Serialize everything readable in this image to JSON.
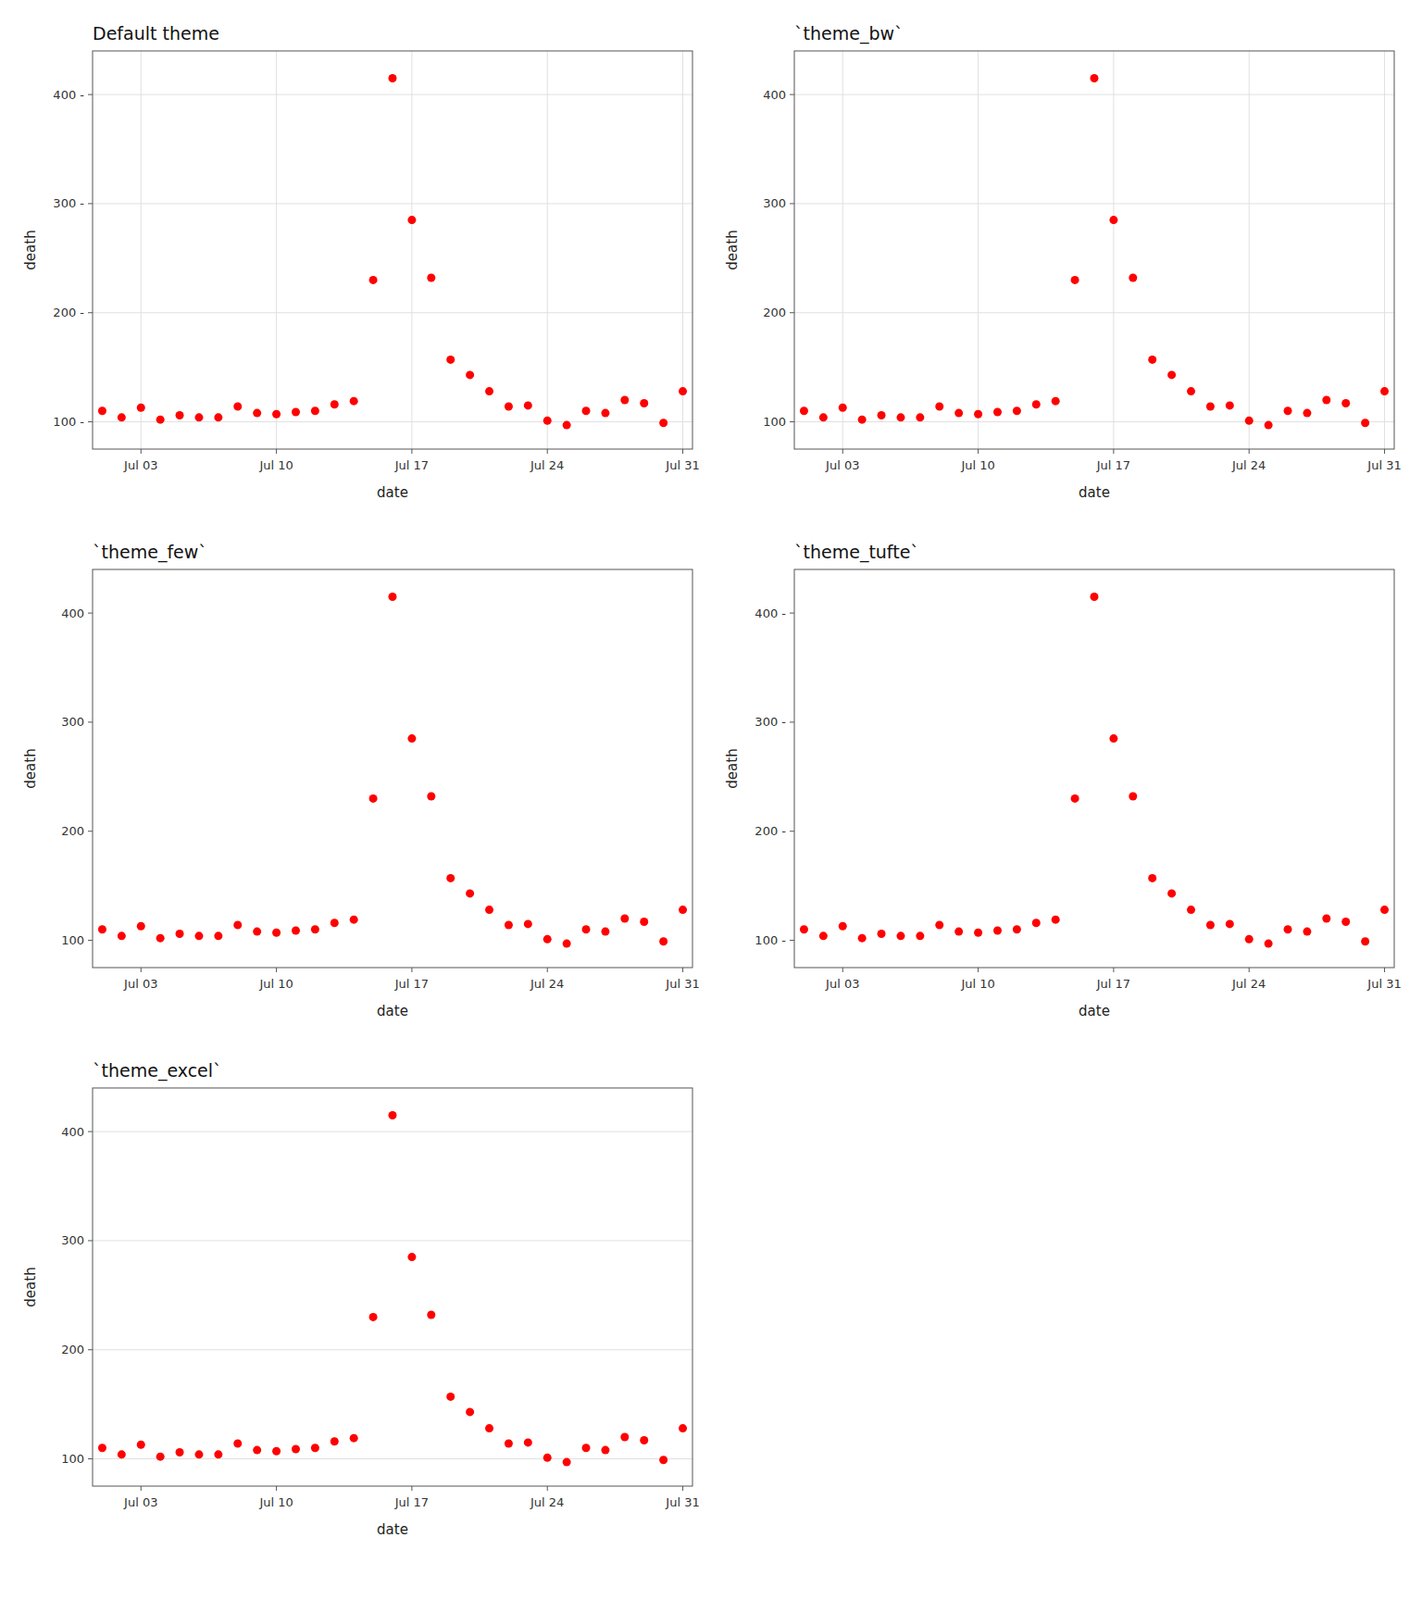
{
  "chart_data": [
    {
      "type": "scatter",
      "title": "Default theme",
      "x_label": "date",
      "y_label": "death",
      "x": [
        1,
        2,
        3,
        4,
        5,
        6,
        7,
        8,
        9,
        10,
        11,
        12,
        13,
        14,
        15,
        16,
        17,
        18,
        19,
        20,
        21,
        22,
        23,
        24,
        25,
        26,
        27,
        28,
        29,
        30,
        31
      ],
      "values": [
        110,
        104,
        113,
        102,
        106,
        104,
        104,
        114,
        108,
        107,
        109,
        110,
        116,
        119,
        230,
        415,
        285,
        232,
        157,
        143,
        128,
        114,
        115,
        101,
        97,
        110,
        108,
        120,
        117,
        99,
        128
      ],
      "color": "#FF0000",
      "xlim": [
        0.5,
        31.5
      ],
      "xticks": [
        {
          "value": 3,
          "label": "Jul 03"
        },
        {
          "value": 10,
          "label": "Jul 10"
        },
        {
          "value": 17,
          "label": "Jul 17"
        },
        {
          "value": 24,
          "label": "Jul 24"
        },
        {
          "value": 31,
          "label": "Jul 31"
        }
      ],
      "ylim": [
        75,
        440
      ],
      "yticks": [
        {
          "value": 100,
          "label": "100 -"
        },
        {
          "value": 200,
          "label": "200 -"
        },
        {
          "value": 300,
          "label": "300 -"
        },
        {
          "value": 400,
          "label": "400 -"
        }
      ],
      "grid": true
    },
    {
      "type": "scatter",
      "title": "`theme_bw`",
      "x_label": "date",
      "y_label": "death",
      "x": [
        1,
        2,
        3,
        4,
        5,
        6,
        7,
        8,
        9,
        10,
        11,
        12,
        13,
        14,
        15,
        16,
        17,
        18,
        19,
        20,
        21,
        22,
        23,
        24,
        25,
        26,
        27,
        28,
        29,
        30,
        31
      ],
      "values": [
        110,
        104,
        113,
        102,
        106,
        104,
        104,
        114,
        108,
        107,
        109,
        110,
        116,
        119,
        230,
        415,
        285,
        232,
        157,
        143,
        128,
        114,
        115,
        101,
        97,
        110,
        108,
        120,
        117,
        99,
        128
      ],
      "color": "#FF0000",
      "xlim": [
        0.5,
        31.5
      ],
      "xticks": [
        {
          "value": 3,
          "label": "Jul 03"
        },
        {
          "value": 10,
          "label": "Jul 10"
        },
        {
          "value": 17,
          "label": "Jul 17"
        },
        {
          "value": 24,
          "label": "Jul 24"
        },
        {
          "value": 31,
          "label": "Jul 31"
        }
      ],
      "ylim": [
        75,
        440
      ],
      "yticks": [
        100,
        200,
        300,
        400
      ],
      "grid": true
    },
    {
      "type": "scatter",
      "title": "`theme_few`",
      "x_label": "date",
      "y_label": "death",
      "x": [
        1,
        2,
        3,
        4,
        5,
        6,
        7,
        8,
        9,
        10,
        11,
        12,
        13,
        14,
        15,
        16,
        17,
        18,
        19,
        20,
        21,
        22,
        23,
        24,
        25,
        26,
        27,
        28,
        29,
        30,
        31
      ],
      "values": [
        110,
        104,
        113,
        102,
        106,
        104,
        104,
        114,
        108,
        107,
        109,
        110,
        116,
        119,
        230,
        415,
        285,
        232,
        157,
        143,
        128,
        114,
        115,
        101,
        97,
        110,
        108,
        120,
        117,
        99,
        128
      ],
      "color": "#FF0000",
      "xlim": [
        0.5,
        31.5
      ],
      "xticks": [
        {
          "value": 3,
          "label": "Jul 03"
        },
        {
          "value": 10,
          "label": "Jul 10"
        },
        {
          "value": 17,
          "label": "Jul 17"
        },
        {
          "value": 24,
          "label": "Jul 24"
        },
        {
          "value": 31,
          "label": "Jul 31"
        }
      ],
      "ylim": [
        75,
        440
      ],
      "yticks": [
        100,
        200,
        300,
        400
      ],
      "grid": false
    },
    {
      "type": "scatter",
      "title": "`theme_tufte`",
      "x_label": "date",
      "y_label": "death",
      "x": [
        1,
        2,
        3,
        4,
        5,
        6,
        7,
        8,
        9,
        10,
        11,
        12,
        13,
        14,
        15,
        16,
        17,
        18,
        19,
        20,
        21,
        22,
        23,
        24,
        25,
        26,
        27,
        28,
        29,
        30,
        31
      ],
      "values": [
        110,
        104,
        113,
        102,
        106,
        104,
        104,
        114,
        108,
        107,
        109,
        110,
        116,
        119,
        230,
        415,
        285,
        232,
        157,
        143,
        128,
        114,
        115,
        101,
        97,
        110,
        108,
        120,
        117,
        99,
        128
      ],
      "color": "#FF0000",
      "xlim": [
        0.5,
        31.5
      ],
      "xticks": [
        {
          "value": 3,
          "label": "Jul 03"
        },
        {
          "value": 10,
          "label": "Jul 10"
        },
        {
          "value": 17,
          "label": "Jul 17"
        },
        {
          "value": 24,
          "label": "Jul 24"
        },
        {
          "value": 31,
          "label": "Jul 31"
        }
      ],
      "ylim": [
        75,
        440
      ],
      "yticks": [
        {
          "value": 100,
          "label": "100 -"
        },
        {
          "value": 200,
          "label": "200 -"
        },
        {
          "value": 300,
          "label": "300 -"
        },
        {
          "value": 400,
          "label": "400 -"
        }
      ],
      "grid": false
    },
    {
      "type": "scatter",
      "title": "`theme_excel`",
      "x_label": "date",
      "y_label": "death",
      "x": [
        1,
        2,
        3,
        4,
        5,
        6,
        7,
        8,
        9,
        10,
        11,
        12,
        13,
        14,
        15,
        16,
        17,
        18,
        19,
        20,
        21,
        22,
        23,
        24,
        25,
        26,
        27,
        28,
        29,
        30,
        31
      ],
      "values": [
        110,
        104,
        113,
        102,
        106,
        104,
        104,
        114,
        108,
        107,
        109,
        110,
        116,
        119,
        230,
        415,
        285,
        232,
        157,
        143,
        128,
        114,
        115,
        101,
        97,
        110,
        108,
        120,
        117,
        99,
        128
      ],
      "color": "#FF0000",
      "xlim": [
        0.5,
        31.5
      ],
      "xticks": [
        {
          "value": 3,
          "label": "Jul 03"
        },
        {
          "value": 10,
          "label": "Jul 10"
        },
        {
          "value": 17,
          "label": "Jul 17"
        },
        {
          "value": 24,
          "label": "Jul 24"
        },
        {
          "value": 31,
          "label": "Jul 31"
        }
      ],
      "ylim": [
        75,
        440
      ],
      "yticks": [
        100,
        200,
        300,
        400
      ],
      "grid": "y"
    }
  ]
}
